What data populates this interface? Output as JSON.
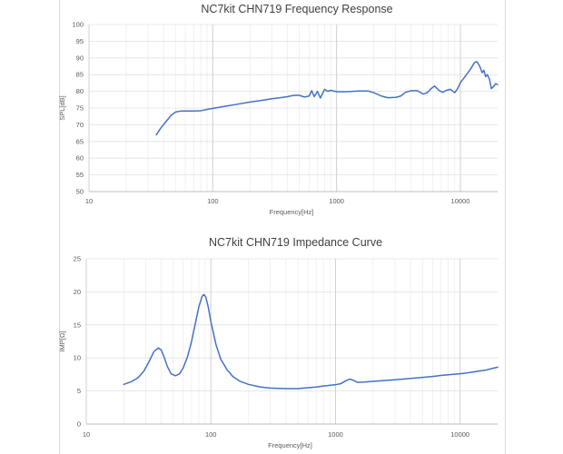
{
  "chart_data": [
    {
      "type": "line",
      "title": "NC7kit CHN719 Frequency Response",
      "xlabel": "Frequency[Hz]",
      "ylabel": "SPL[dB]",
      "xscale": "log",
      "xlim": [
        10,
        20000
      ],
      "ylim": [
        50,
        100
      ],
      "xticks": [
        10,
        100,
        1000,
        10000
      ],
      "xtick_labels": [
        "10",
        "100",
        "1000",
        "10000"
      ],
      "yticks": [
        50,
        55,
        60,
        65,
        70,
        75,
        80,
        85,
        90,
        95,
        100
      ],
      "ytick_labels": [
        "50",
        "55",
        "60",
        "65",
        "70",
        "75",
        "80",
        "85",
        "90",
        "95",
        "100"
      ],
      "grid": true,
      "legend": "none",
      "series": [
        {
          "color": "#4472c4",
          "points": [
            [
              35,
              67
            ],
            [
              38,
              69
            ],
            [
              42,
              71
            ],
            [
              46,
              72.8
            ],
            [
              50,
              73.8
            ],
            [
              55,
              74.1
            ],
            [
              60,
              74.1
            ],
            [
              70,
              74.1
            ],
            [
              80,
              74.2
            ],
            [
              90,
              74.6
            ],
            [
              100,
              74.9
            ],
            [
              120,
              75.4
            ],
            [
              150,
              76.0
            ],
            [
              200,
              76.8
            ],
            [
              250,
              77.3
            ],
            [
              300,
              77.8
            ],
            [
              350,
              78.1
            ],
            [
              400,
              78.4
            ],
            [
              450,
              78.8
            ],
            [
              500,
              78.8
            ],
            [
              550,
              78.3
            ],
            [
              600,
              78.6
            ],
            [
              630,
              80.2
            ],
            [
              660,
              78.4
            ],
            [
              700,
              80.0
            ],
            [
              740,
              78.0
            ],
            [
              800,
              80.6
            ],
            [
              850,
              80.0
            ],
            [
              900,
              80.3
            ],
            [
              1000,
              79.9
            ],
            [
              1200,
              79.9
            ],
            [
              1500,
              80.1
            ],
            [
              1800,
              80.1
            ],
            [
              2000,
              79.6
            ],
            [
              2300,
              78.6
            ],
            [
              2600,
              78.1
            ],
            [
              3000,
              78.2
            ],
            [
              3300,
              78.6
            ],
            [
              3600,
              79.7
            ],
            [
              4000,
              80.2
            ],
            [
              4500,
              80.2
            ],
            [
              5000,
              79.2
            ],
            [
              5400,
              79.6
            ],
            [
              5800,
              80.8
            ],
            [
              6200,
              81.6
            ],
            [
              6700,
              80.3
            ],
            [
              7200,
              79.7
            ],
            [
              7700,
              80.3
            ],
            [
              8300,
              80.6
            ],
            [
              9000,
              79.6
            ],
            [
              9500,
              80.8
            ],
            [
              10000,
              82.6
            ],
            [
              11000,
              84.6
            ],
            [
              12000,
              86.5
            ],
            [
              13000,
              88.6
            ],
            [
              13600,
              88.9
            ],
            [
              14300,
              87.6
            ],
            [
              15000,
              85.6
            ],
            [
              15500,
              86.3
            ],
            [
              16000,
              84.4
            ],
            [
              16500,
              85.0
            ],
            [
              17200,
              83.6
            ],
            [
              17800,
              80.8
            ],
            [
              18500,
              81.4
            ],
            [
              19300,
              82.3
            ],
            [
              20000,
              82.0
            ]
          ]
        }
      ]
    },
    {
      "type": "line",
      "title": "NC7kit CHN719 Impedance Curve",
      "xlabel": "Frequency[Hz]",
      "ylabel": "IMP[Ω]",
      "xscale": "log",
      "xlim": [
        10,
        20000
      ],
      "ylim": [
        0,
        25
      ],
      "xticks": [
        10,
        100,
        1000,
        10000
      ],
      "xtick_labels": [
        "10",
        "100",
        "1000",
        "10000"
      ],
      "yticks": [
        0,
        5,
        10,
        15,
        20,
        25
      ],
      "ytick_labels": [
        "0",
        "5",
        "10",
        "15",
        "20",
        "25"
      ],
      "grid": true,
      "legend": "none",
      "series": [
        {
          "color": "#4472c4",
          "points": [
            [
              20,
              6.0
            ],
            [
              23,
              6.4
            ],
            [
              26,
              7.0
            ],
            [
              29,
              8.0
            ],
            [
              32,
              9.5
            ],
            [
              35,
              11.0
            ],
            [
              38,
              11.5
            ],
            [
              40,
              11.2
            ],
            [
              42,
              10.2
            ],
            [
              45,
              8.6
            ],
            [
              48,
              7.6
            ],
            [
              52,
              7.3
            ],
            [
              56,
              7.6
            ],
            [
              60,
              8.5
            ],
            [
              65,
              10.2
            ],
            [
              70,
              12.5
            ],
            [
              75,
              15.2
            ],
            [
              80,
              17.7
            ],
            [
              85,
              19.3
            ],
            [
              88,
              19.6
            ],
            [
              91,
              19.2
            ],
            [
              95,
              17.8
            ],
            [
              100,
              15.5
            ],
            [
              110,
              12.0
            ],
            [
              120,
              9.8
            ],
            [
              135,
              8.2
            ],
            [
              150,
              7.2
            ],
            [
              170,
              6.5
            ],
            [
              200,
              6.0
            ],
            [
              250,
              5.6
            ],
            [
              300,
              5.45
            ],
            [
              350,
              5.4
            ],
            [
              400,
              5.35
            ],
            [
              500,
              5.35
            ],
            [
              600,
              5.5
            ],
            [
              700,
              5.6
            ],
            [
              800,
              5.75
            ],
            [
              900,
              5.85
            ],
            [
              1000,
              5.95
            ],
            [
              1100,
              6.1
            ],
            [
              1200,
              6.5
            ],
            [
              1300,
              6.8
            ],
            [
              1400,
              6.6
            ],
            [
              1500,
              6.3
            ],
            [
              1700,
              6.35
            ],
            [
              2000,
              6.45
            ],
            [
              3000,
              6.7
            ],
            [
              4000,
              6.9
            ],
            [
              5000,
              7.05
            ],
            [
              6000,
              7.2
            ],
            [
              7000,
              7.35
            ],
            [
              8000,
              7.45
            ],
            [
              10000,
              7.6
            ],
            [
              12000,
              7.8
            ],
            [
              14000,
              8.0
            ],
            [
              16000,
              8.15
            ],
            [
              18000,
              8.4
            ],
            [
              20000,
              8.6
            ]
          ]
        }
      ]
    }
  ]
}
